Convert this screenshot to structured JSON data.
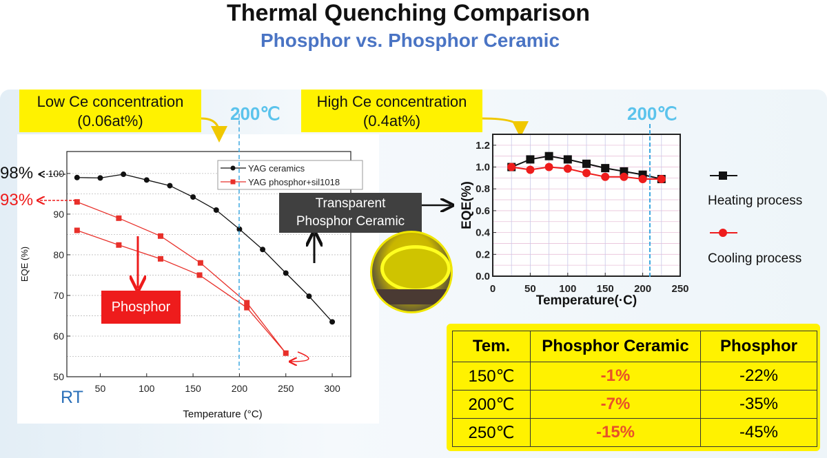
{
  "title": "Thermal Quenching Comparison",
  "subtitle": "Phosphor vs. Phosphor Ceramic",
  "low_box": {
    "line1": "Low Ce concentration",
    "line2": "(0.06at%)"
  },
  "high_box": {
    "line1": "High Ce concentration",
    "line2": "(0.4at%)"
  },
  "marker_200": "200℃",
  "callouts": {
    "ceramic_98": "98%",
    "phosphor_93": "93%",
    "rt": "RT",
    "transparent_line1": "Transparent",
    "transparent_line2": "Phosphor Ceramic",
    "phosphor": "Phosphor"
  },
  "colors": {
    "yellow": "#fff200",
    "blue_marker": "#5bc3ec",
    "red": "#ee1c1c",
    "title_blue": "#4a74c4"
  },
  "chart_data": [
    {
      "type": "line",
      "xlabel": "Temperature (°C)",
      "ylabel": "EQE (%)",
      "xlim": [
        14,
        320
      ],
      "ylim": [
        50,
        105.4
      ],
      "xticks": [
        50,
        100,
        150,
        200,
        250,
        300
      ],
      "yticks": [
        50,
        60,
        70,
        80,
        90,
        100
      ],
      "grid": true,
      "legend": "top-right",
      "series": [
        {
          "name": "YAG ceramics",
          "color": "#111111",
          "marker": "circle",
          "x": [
            25,
            50,
            75,
            100,
            125,
            150,
            175,
            200,
            225,
            250,
            275,
            300
          ],
          "y": [
            99,
            98.9,
            99.8,
            98.4,
            97,
            94.2,
            91,
            86.3,
            81.3,
            75.5,
            69.8,
            63.5
          ]
        },
        {
          "name": "YAG phosphor+sil1018",
          "color": "#e8302a",
          "marker": "square",
          "x": [
            25,
            70,
            115,
            158,
            208,
            250,
            208,
            157,
            115,
            70,
            25
          ],
          "y": [
            93,
            89,
            84.6,
            78,
            68.2,
            55.8,
            67,
            75,
            79,
            82.4,
            86
          ]
        }
      ]
    },
    {
      "type": "line",
      "xlabel": "Temperature(·C)",
      "ylabel": "EQE(%)",
      "xlim": [
        0,
        250
      ],
      "ylim": [
        0,
        1.3
      ],
      "xticks": [
        0,
        50,
        100,
        150,
        200,
        250
      ],
      "yticks": [
        0.0,
        0.2,
        0.4,
        0.6,
        0.8,
        1.0,
        1.2
      ],
      "grid": true,
      "legend": "right",
      "series": [
        {
          "name": "Heating process",
          "color": "#111111",
          "marker": "square",
          "x": [
            25,
            50,
            75,
            100,
            125,
            150,
            175,
            200,
            225
          ],
          "y": [
            1.0,
            1.07,
            1.1,
            1.07,
            1.03,
            0.99,
            0.96,
            0.93,
            0.89
          ]
        },
        {
          "name": "Cooling process",
          "color": "#ee1c1c",
          "marker": "circle",
          "x": [
            25,
            50,
            75,
            100,
            125,
            150,
            175,
            200,
            225
          ],
          "y": [
            1.0,
            0.975,
            1.0,
            0.985,
            0.945,
            0.91,
            0.91,
            0.89,
            0.89
          ]
        }
      ]
    }
  ],
  "table": {
    "headers": [
      "Tem.",
      "Phosphor Ceramic",
      "Phosphor"
    ],
    "rows": [
      [
        "150℃",
        "-1%",
        "-22%"
      ],
      [
        "200℃",
        "-7%",
        "-35%"
      ],
      [
        "250℃",
        "-15%",
        "-45%"
      ]
    ]
  }
}
